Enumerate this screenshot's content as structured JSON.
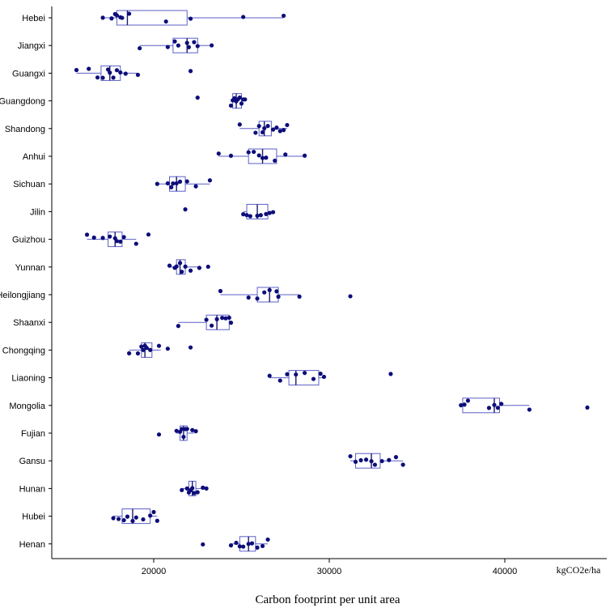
{
  "chart_data": {
    "type": "boxplot",
    "orientation": "horizontal",
    "xlabel": "Carbon footprint per unit area",
    "unit_label": "kgCO2e/ha",
    "xlim": [
      14000,
      45500
    ],
    "xticks": [
      20000,
      30000,
      40000
    ],
    "grid": false,
    "legend": "none",
    "colors": {
      "box": "#5b5fc7",
      "point": "#0d0d7a",
      "axis": "#000000"
    },
    "categories": [
      "Hebei",
      "Jiangxi",
      "Guangxi",
      "Guangdong",
      "Shandong",
      "Anhui",
      "Sichuan",
      "Jilin",
      "Guizhou",
      "Yunnan",
      "Heilongjiang",
      "Shaanxi",
      "Chongqing",
      "Liaoning",
      "Mongolia",
      "Fujian",
      "Gansu",
      "Hunan",
      "Hubei",
      "Henan"
    ],
    "series": [
      {
        "category": "Hebei",
        "q1": 17900,
        "median": 18500,
        "q3": 21900,
        "whisker_low": 17100,
        "whisker_high": 27400,
        "points": [
          17100,
          17600,
          17800,
          17900,
          18100,
          18200,
          18600,
          20700,
          22100,
          25100,
          27400
        ]
      },
      {
        "category": "Jiangxi",
        "q1": 21100,
        "median": 21900,
        "q3": 22500,
        "whisker_low": 19200,
        "whisker_high": 23300,
        "points": [
          19200,
          20800,
          21200,
          21400,
          21900,
          22000,
          22300,
          22500,
          23300
        ]
      },
      {
        "category": "Guangxi",
        "q1": 17000,
        "median": 17500,
        "q3": 18100,
        "whisker_low": 15600,
        "whisker_high": 19100,
        "points": [
          15600,
          16300,
          16800,
          17100,
          17400,
          17500,
          17700,
          17900,
          18100,
          18400,
          19100,
          22100
        ]
      },
      {
        "category": "Guangdong",
        "q1": 24500,
        "median": 24700,
        "q3": 25000,
        "whisker_low": 24400,
        "whisker_high": 25200,
        "points": [
          22500,
          24400,
          24500,
          24600,
          24700,
          24800,
          24900,
          25000,
          25100,
          25200
        ]
      },
      {
        "category": "Shandong",
        "q1": 26000,
        "median": 26300,
        "q3": 26700,
        "whisker_low": 24900,
        "whisker_high": 27600,
        "points": [
          24900,
          25800,
          26000,
          26200,
          26300,
          26500,
          26800,
          27000,
          27200,
          27400,
          27600
        ]
      },
      {
        "category": "Anhui",
        "q1": 25400,
        "median": 26200,
        "q3": 27000,
        "whisker_low": 23700,
        "whisker_high": 28600,
        "points": [
          23700,
          24400,
          25400,
          25700,
          26000,
          26200,
          26400,
          26900,
          27500,
          28600
        ]
      },
      {
        "category": "Sichuan",
        "q1": 20900,
        "median": 21300,
        "q3": 21800,
        "whisker_low": 20200,
        "whisker_high": 23200,
        "points": [
          20200,
          20800,
          21000,
          21100,
          21300,
          21500,
          21900,
          22400,
          23200
        ]
      },
      {
        "category": "Jilin",
        "q1": 25300,
        "median": 25900,
        "q3": 26500,
        "whisker_low": 25100,
        "whisker_high": 26800,
        "points": [
          21800,
          25100,
          25300,
          25500,
          25900,
          26100,
          26400,
          26600,
          26800
        ]
      },
      {
        "category": "Guizhou",
        "q1": 17400,
        "median": 17800,
        "q3": 18200,
        "whisker_low": 16200,
        "whisker_high": 19000,
        "points": [
          16200,
          16600,
          17100,
          17500,
          17800,
          17900,
          18100,
          18300,
          19000,
          19700
        ]
      },
      {
        "category": "Yunnan",
        "q1": 21300,
        "median": 21500,
        "q3": 21800,
        "whisker_low": 20900,
        "whisker_high": 22600,
        "points": [
          20900,
          21200,
          21300,
          21500,
          21600,
          21800,
          22100,
          22600,
          23100
        ]
      },
      {
        "category": "Heilongjiang",
        "q1": 25900,
        "median": 26600,
        "q3": 27100,
        "whisker_low": 23800,
        "whisker_high": 28300,
        "points": [
          23800,
          25400,
          25900,
          26300,
          26600,
          27000,
          27100,
          28300,
          31200
        ]
      },
      {
        "category": "Shaanxi",
        "q1": 23000,
        "median": 23600,
        "q3": 24300,
        "whisker_low": 21400,
        "whisker_high": 24400,
        "points": [
          21400,
          23000,
          23300,
          23600,
          23900,
          24100,
          24300,
          24400
        ]
      },
      {
        "category": "Chongqing",
        "q1": 19300,
        "median": 19500,
        "q3": 19900,
        "whisker_low": 18600,
        "whisker_high": 20400,
        "points": [
          18600,
          19100,
          19300,
          19400,
          19500,
          19600,
          19800,
          20300,
          20800,
          22100
        ]
      },
      {
        "category": "Liaoning",
        "q1": 27700,
        "median": 28100,
        "q3": 29400,
        "whisker_low": 26600,
        "whisker_high": 29700,
        "points": [
          26600,
          27200,
          27600,
          28100,
          28600,
          29100,
          29500,
          29700,
          33500
        ]
      },
      {
        "category": "Mongolia",
        "q1": 37600,
        "median": 39400,
        "q3": 39700,
        "whisker_low": 37500,
        "whisker_high": 41400,
        "points": [
          37500,
          37700,
          37900,
          39100,
          39400,
          39600,
          39800,
          41400,
          44700
        ]
      },
      {
        "category": "Fujian",
        "q1": 21500,
        "median": 21700,
        "q3": 21900,
        "whisker_low": 21300,
        "whisker_high": 22300,
        "points": [
          20300,
          21300,
          21500,
          21600,
          21700,
          21800,
          21900,
          22200,
          22400
        ]
      },
      {
        "category": "Gansu",
        "q1": 31500,
        "median": 32400,
        "q3": 32900,
        "whisker_low": 31200,
        "whisker_high": 34200,
        "points": [
          31200,
          31500,
          31800,
          32100,
          32400,
          32600,
          33000,
          33400,
          33800,
          34200
        ]
      },
      {
        "category": "Hunan",
        "q1": 22000,
        "median": 22200,
        "q3": 22400,
        "whisker_low": 21600,
        "whisker_high": 23000,
        "points": [
          21600,
          21900,
          22000,
          22100,
          22200,
          22300,
          22500,
          22800,
          23000
        ]
      },
      {
        "category": "Hubei",
        "q1": 18200,
        "median": 18800,
        "q3": 19800,
        "whisker_low": 17700,
        "whisker_high": 20200,
        "points": [
          17700,
          18000,
          18300,
          18500,
          18800,
          19000,
          19400,
          19800,
          20000,
          20200
        ]
      },
      {
        "category": "Henan",
        "q1": 24900,
        "median": 25400,
        "q3": 25800,
        "whisker_low": 24400,
        "whisker_high": 26500,
        "points": [
          22800,
          24400,
          24700,
          24900,
          25100,
          25400,
          25600,
          25900,
          26200,
          26500
        ]
      }
    ]
  }
}
